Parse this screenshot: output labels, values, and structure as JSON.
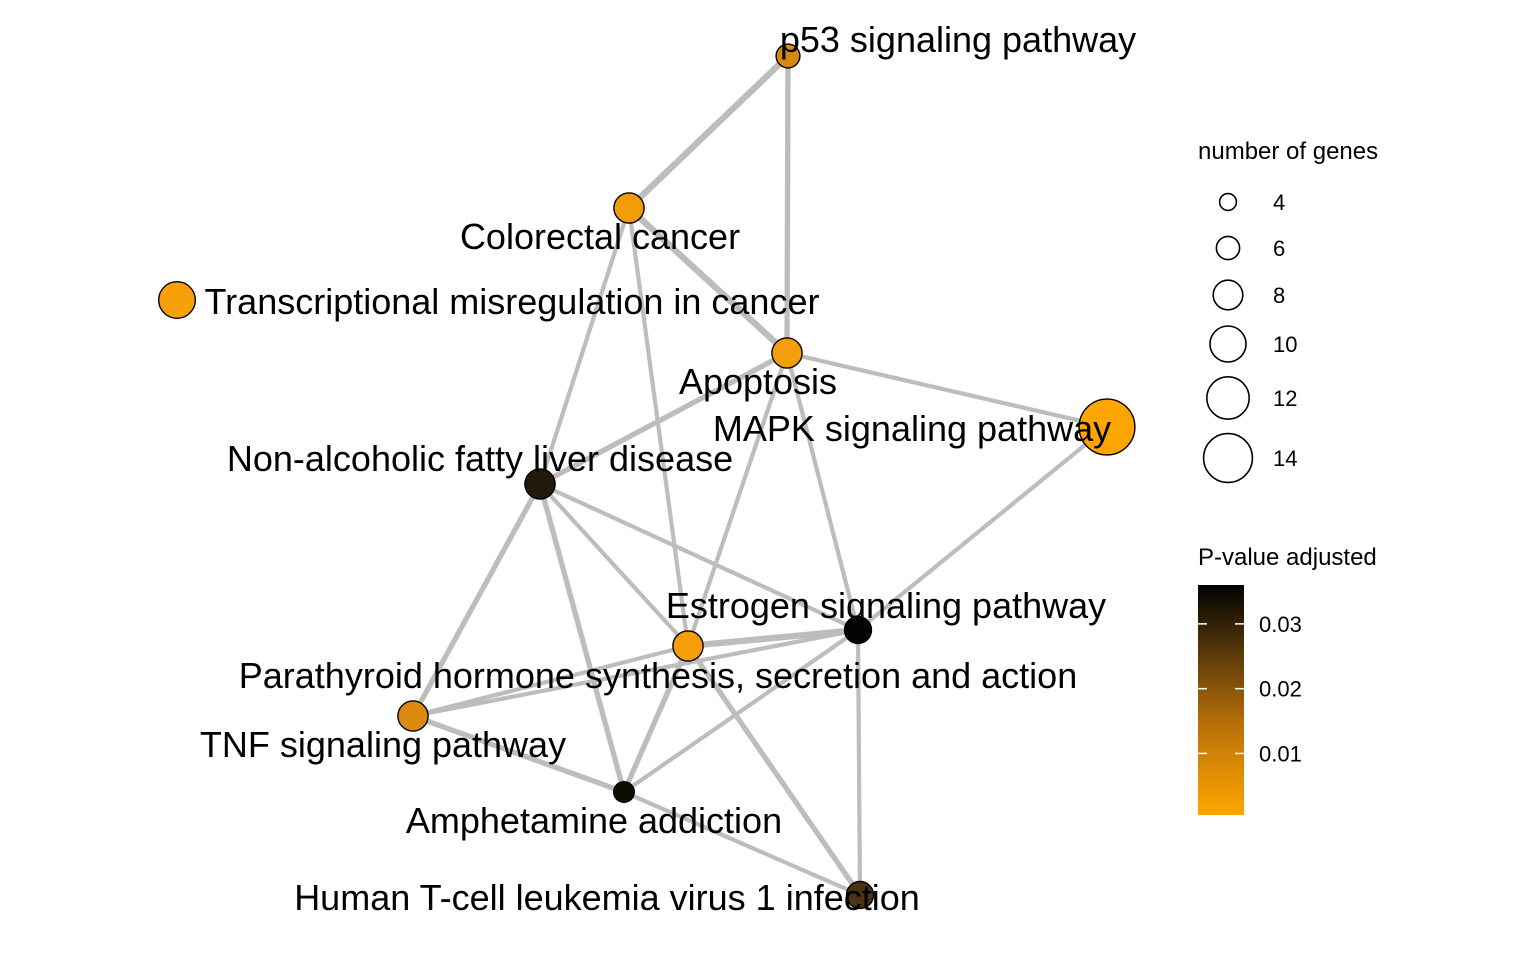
{
  "nodes": [
    {
      "id": "p53",
      "label": "p53 signaling pathway",
      "color": "#d9890f",
      "genes": 4
    },
    {
      "id": "colorectal",
      "label": "Colorectal cancer",
      "color": "#f39c0a",
      "genes": 6
    },
    {
      "id": "transcriptional",
      "label": "Transcriptional misregulation in cancer",
      "color": "#f8a00a",
      "genes": 8
    },
    {
      "id": "apoptosis",
      "label": "Apoptosis",
      "color": "#f59e0b",
      "genes": 6
    },
    {
      "id": "mapk",
      "label": "MAPK signaling pathway",
      "color": "#ffa500",
      "genes": 14
    },
    {
      "id": "nafld",
      "label": "Non-alcoholic fatty liver disease",
      "color": "#23190b",
      "genes": 6
    },
    {
      "id": "estrogen",
      "label": "Estrogen signaling pathway",
      "color": "#050404",
      "genes": 5
    },
    {
      "id": "parathyroid",
      "label": "Parathyroid hormone synthesis, secretion and action",
      "color": "#f59d0b",
      "genes": 6
    },
    {
      "id": "tnf",
      "label": "TNF signaling pathway",
      "color": "#dc8b10",
      "genes": 6
    },
    {
      "id": "amphetamine",
      "label": "Amphetamine addiction",
      "color": "#0f0c08",
      "genes": 3
    },
    {
      "id": "htlv",
      "label": "Human T-cell leukemia virus 1 infection",
      "color": "#4a3311",
      "genes": 5
    }
  ],
  "edges": [
    {
      "source": "p53",
      "target": "colorectal",
      "weight": 4
    },
    {
      "source": "p53",
      "target": "apoptosis",
      "weight": 3
    },
    {
      "source": "colorectal",
      "target": "apoptosis",
      "weight": 4
    },
    {
      "source": "colorectal",
      "target": "nafld",
      "weight": 2
    },
    {
      "source": "colorectal",
      "target": "parathyroid",
      "weight": 2
    },
    {
      "source": "apoptosis",
      "target": "mapk",
      "weight": 2
    },
    {
      "source": "apoptosis",
      "target": "nafld",
      "weight": 3
    },
    {
      "source": "apoptosis",
      "target": "estrogen",
      "weight": 2
    },
    {
      "source": "apoptosis",
      "target": "parathyroid",
      "weight": 2
    },
    {
      "source": "mapk",
      "target": "estrogen",
      "weight": 2
    },
    {
      "source": "nafld",
      "target": "estrogen",
      "weight": 2
    },
    {
      "source": "nafld",
      "target": "parathyroid",
      "weight": 2
    },
    {
      "source": "nafld",
      "target": "tnf",
      "weight": 3
    },
    {
      "source": "nafld",
      "target": "amphetamine",
      "weight": 3
    },
    {
      "source": "estrogen",
      "target": "parathyroid",
      "weight": 4
    },
    {
      "source": "estrogen",
      "target": "tnf",
      "weight": 2
    },
    {
      "source": "estrogen",
      "target": "amphetamine",
      "weight": 2
    },
    {
      "source": "estrogen",
      "target": "htlv",
      "weight": 2
    },
    {
      "source": "parathyroid",
      "target": "tnf",
      "weight": 2
    },
    {
      "source": "parathyroid",
      "target": "amphetamine",
      "weight": 3
    },
    {
      "source": "parathyroid",
      "target": "htlv",
      "weight": 3
    },
    {
      "source": "tnf",
      "target": "amphetamine",
      "weight": 3
    },
    {
      "source": "amphetamine",
      "target": "htlv",
      "weight": 2
    }
  ],
  "legend_size": {
    "title": "number of genes",
    "values": [
      4,
      6,
      8,
      10,
      12,
      14
    ],
    "labels": [
      "4",
      "6",
      "8",
      "10",
      "12",
      "14"
    ]
  },
  "legend_color": {
    "title": "P-value adjusted",
    "ticks": [
      "0.03",
      "0.02",
      "0.01"
    ],
    "tick_values": [
      0.03,
      0.02,
      0.01
    ],
    "range": [
      0.0005,
      0.036
    ],
    "color_low": "#ffa500",
    "color_high": "#000000"
  },
  "edge_color": "#bdbdbd"
}
